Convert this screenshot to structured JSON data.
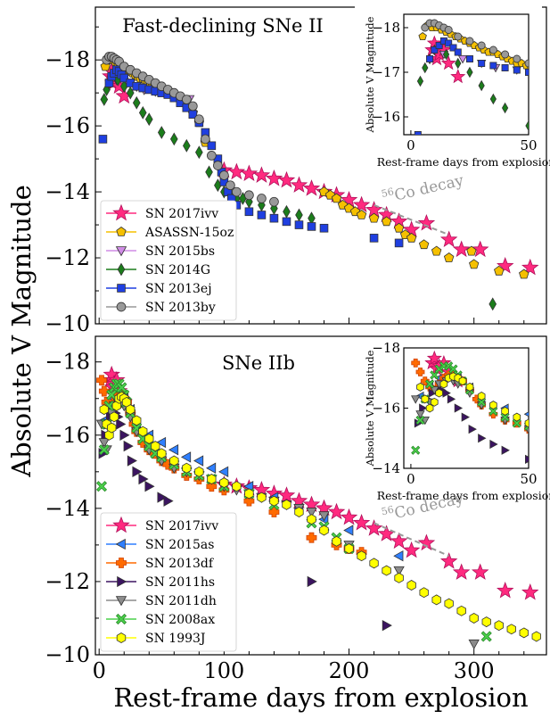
{
  "colors": {
    "SN 2017ivv": "#ff2a7f",
    "ASASSN-15oz": "#f5c000",
    "SN 2015bs": "#d08ce6",
    "SN 2014G": "#1b7d1b",
    "SN 2013ej": "#1f3fe0",
    "SN 2013by": "#999999",
    "SN 2015as": "#2f7fff",
    "SN 2013df": "#ff6a00",
    "SN 2011hs": "#3b1460",
    "SN 2011dh": "#8c8c8c",
    "SN 2008ax": "#4bd04b",
    "SN 1993J": "#ffff00"
  },
  "shared": {
    "xlabel": "Rest-frame days from explosion",
    "ylabel": "Absolute V Magnitude",
    "inset_xlabel": "Rest-frame days from explosion",
    "inset_ylabel": "Absolute V Magnitude",
    "decay_label": "Co decay",
    "decay_sup": "56"
  },
  "chart_data": [
    {
      "type": "scatter",
      "panel": "top",
      "title": "Fast-declining SNe II",
      "xlim": [
        -3,
        358
      ],
      "ylim": [
        -10,
        -19.6
      ],
      "y_inverted": true,
      "yticks": [
        -18,
        -16,
        -14,
        -12,
        -10
      ],
      "yticklabels": [
        "−18",
        "−16",
        "−14",
        "−12",
        "−10"
      ],
      "legend_position": "lower-left",
      "decay_line": {
        "x": [
          220,
          280
        ],
        "y": [
          -13.6,
          -12.7
        ]
      },
      "series": [
        {
          "name": "SN 2017ivv",
          "marker": "star",
          "x": [
            9,
            10,
            11,
            12,
            14,
            16,
            20,
            100,
            110,
            120,
            130,
            140,
            150,
            160,
            170,
            180,
            190,
            200,
            210,
            220,
            230,
            240,
            250,
            262,
            280,
            290,
            305,
            325,
            345
          ],
          "y": [
            -17.5,
            -17.65,
            -17.3,
            -17.4,
            -17.5,
            -17.2,
            -16.9,
            -14.65,
            -14.6,
            -14.55,
            -14.5,
            -14.4,
            -14.35,
            -14.2,
            -14.1,
            -14.0,
            -13.9,
            -13.75,
            -13.6,
            -13.45,
            -13.3,
            -13.1,
            -12.85,
            -13.05,
            -12.55,
            -12.25,
            -12.25,
            -11.75,
            -11.7
          ]
        },
        {
          "name": "ASASSN-15oz",
          "marker": "pentagon",
          "x": [
            5,
            7,
            9,
            11,
            13,
            15,
            17,
            19,
            21,
            23,
            25,
            27,
            29,
            31,
            33,
            35,
            37,
            39,
            41,
            43,
            45,
            47,
            49,
            51,
            55,
            60,
            65,
            70,
            75,
            80,
            85,
            180,
            185,
            190,
            195,
            200,
            205,
            210,
            220,
            230,
            240,
            245,
            250,
            260,
            270,
            280,
            298,
            300,
            320,
            340
          ],
          "y": [
            -17.8,
            -18.05,
            -18.0,
            -18.0,
            -17.95,
            -17.9,
            -17.85,
            -17.8,
            -17.75,
            -17.7,
            -17.65,
            -17.6,
            -17.55,
            -17.5,
            -17.45,
            -17.45,
            -17.4,
            -17.35,
            -17.3,
            -17.25,
            -17.2,
            -17.2,
            -17.15,
            -17.1,
            -17.0,
            -16.9,
            -16.8,
            -16.6,
            -16.4,
            -16.1,
            -15.5,
            -14.0,
            -13.9,
            -13.8,
            -13.6,
            -13.5,
            -13.4,
            -13.3,
            -13.2,
            -13.1,
            -12.9,
            -12.7,
            -12.6,
            -12.4,
            -12.2,
            -12.0,
            -12.2,
            -11.8,
            -11.6,
            -11.5
          ]
        },
        {
          "name": "SN 2015bs",
          "marker": "triangle-down",
          "x": [
            14,
            22,
            30,
            36,
            45,
            52,
            62,
            72
          ],
          "y": [
            -17.4,
            -17.3,
            -17.2,
            -17.1,
            -17.05,
            -17.0,
            -16.9,
            -16.8
          ]
        },
        {
          "name": "SN 2014G",
          "marker": "diamond",
          "x": [
            4,
            6,
            8,
            10,
            15,
            20,
            25,
            30,
            35,
            40,
            50,
            60,
            70,
            80,
            88,
            95,
            100,
            105,
            110,
            115,
            120,
            130,
            140,
            150,
            160,
            170,
            315
          ],
          "y": [
            -16.8,
            -17.1,
            -17.3,
            -17.5,
            -17.4,
            -17.2,
            -17.0,
            -16.7,
            -16.4,
            -16.2,
            -15.8,
            -15.6,
            -15.4,
            -15.2,
            -14.6,
            -14.2,
            -14.0,
            -13.9,
            -13.8,
            -13.8,
            -13.7,
            -13.6,
            -13.5,
            -13.4,
            -13.3,
            -13.2,
            -10.6
          ]
        },
        {
          "name": "SN 2013ej",
          "marker": "square",
          "x": [
            3,
            8,
            10,
            12,
            14,
            16,
            18,
            20,
            25,
            30,
            35,
            40,
            45,
            50,
            55,
            60,
            65,
            70,
            75,
            80,
            85,
            90,
            95,
            98,
            100,
            103,
            106,
            110,
            120,
            130,
            140,
            150,
            160,
            170,
            180,
            220,
            240
          ],
          "y": [
            -15.6,
            -17.3,
            -17.5,
            -17.6,
            -17.7,
            -17.65,
            -17.55,
            -17.45,
            -17.3,
            -17.2,
            -17.15,
            -17.1,
            -17.05,
            -17.0,
            -16.95,
            -16.85,
            -16.7,
            -16.55,
            -16.35,
            -16.1,
            -15.8,
            -15.4,
            -15.0,
            -14.6,
            -14.3,
            -14.0,
            -13.8,
            -13.6,
            -13.4,
            -13.3,
            -13.2,
            -13.1,
            -13.0,
            -12.95,
            -12.9,
            -12.6,
            -12.45
          ]
        },
        {
          "name": "SN 2013by",
          "marker": "circle",
          "x": [
            6,
            8,
            10,
            12,
            14,
            16,
            20,
            25,
            30,
            35,
            40,
            45,
            50,
            55,
            60,
            65,
            70,
            75,
            80,
            85,
            90,
            95,
            100,
            105,
            110,
            120,
            130,
            140
          ],
          "y": [
            -18.0,
            -18.1,
            -18.1,
            -18.05,
            -18.0,
            -17.95,
            -17.8,
            -17.7,
            -17.6,
            -17.5,
            -17.4,
            -17.3,
            -17.2,
            -17.1,
            -17.0,
            -16.9,
            -16.8,
            -16.6,
            -16.2,
            -15.6,
            -15.1,
            -14.8,
            -14.5,
            -14.2,
            -14.0,
            -13.9,
            -13.8,
            -13.7
          ]
        }
      ],
      "inset": {
        "xlim": [
          -3,
          50
        ],
        "ylim": [
          -15.6,
          -18.3
        ],
        "xticks": [
          0,
          50
        ],
        "yticks": [
          -18,
          -17,
          -16
        ],
        "yticklabels": [
          "−18",
          "−17",
          "−16"
        ],
        "series_names": [
          "SN 2017ivv",
          "ASASSN-15oz",
          "SN 2015bs",
          "SN 2014G",
          "SN 2013ej",
          "SN 2013by"
        ]
      }
    },
    {
      "type": "scatter",
      "panel": "bottom",
      "title": "SNe IIb",
      "xlim": [
        -3,
        358
      ],
      "ylim": [
        -10,
        -18.7
      ],
      "y_inverted": true,
      "xticks": [
        0,
        100,
        200,
        300
      ],
      "yticks": [
        -18,
        -16,
        -14,
        -12,
        -10
      ],
      "yticklabels": [
        "−18",
        "−16",
        "−14",
        "−12",
        "−10"
      ],
      "legend_position": "lower-left",
      "decay_line": {
        "x": [
          220,
          280
        ],
        "y": [
          -13.6,
          -12.7
        ]
      },
      "series": [
        {
          "name": "SN 2017ivv",
          "marker": "star",
          "x": [
            9,
            10,
            11,
            12,
            14,
            16,
            20,
            100,
            110,
            120,
            130,
            140,
            150,
            160,
            170,
            180,
            190,
            200,
            210,
            220,
            230,
            240,
            250,
            262,
            280,
            290,
            305,
            325,
            345
          ],
          "y": [
            -17.5,
            -17.65,
            -17.3,
            -17.4,
            -17.5,
            -17.2,
            -16.9,
            -14.65,
            -14.6,
            -14.55,
            -14.5,
            -14.4,
            -14.35,
            -14.2,
            -14.1,
            -14.0,
            -13.9,
            -13.75,
            -13.6,
            -13.45,
            -13.3,
            -13.1,
            -12.85,
            -13.05,
            -12.55,
            -12.25,
            -12.25,
            -11.75,
            -11.7
          ]
        },
        {
          "name": "SN 2015as",
          "marker": "triangle-left",
          "x": [
            4,
            8,
            12,
            16,
            20,
            25,
            30,
            40,
            50,
            60,
            70,
            80,
            90,
            100,
            120,
            140,
            160,
            180,
            200,
            240
          ],
          "y": [
            -16.4,
            -16.8,
            -17.0,
            -17.1,
            -17.0,
            -16.7,
            -16.3,
            -16.0,
            -15.8,
            -15.6,
            -15.4,
            -15.3,
            -15.1,
            -15.0,
            -14.6,
            -14.3,
            -14.0,
            -13.7,
            -13.4,
            -12.7
          ]
        },
        {
          "name": "SN 2013df",
          "marker": "plus",
          "x": [
            2,
            4,
            6,
            8,
            10,
            12,
            14,
            16,
            18,
            20,
            22,
            25,
            28,
            30,
            35,
            40,
            45,
            50,
            55,
            60,
            70,
            80,
            90,
            100,
            120,
            140,
            170,
            190,
            200,
            210
          ],
          "y": [
            -17.5,
            -17.2,
            -16.9,
            -16.7,
            -16.6,
            -16.8,
            -17.0,
            -17.1,
            -17.1,
            -17.0,
            -16.9,
            -16.6,
            -16.3,
            -16.1,
            -15.8,
            -15.6,
            -15.5,
            -15.3,
            -15.2,
            -15.1,
            -14.9,
            -14.8,
            -14.6,
            -14.5,
            -14.2,
            -13.9,
            -13.2,
            -13.0,
            -12.9,
            -12.8
          ]
        },
        {
          "name": "SN 2011hs",
          "marker": "triangle-right",
          "x": [
            3,
            5,
            7,
            9,
            11,
            13,
            15,
            17,
            20,
            23,
            26,
            30,
            35,
            40,
            50,
            55,
            170,
            230
          ],
          "y": [
            -15.5,
            -16.0,
            -16.3,
            -16.5,
            -16.6,
            -16.6,
            -16.5,
            -16.3,
            -16.0,
            -15.7,
            -15.3,
            -15.0,
            -14.8,
            -14.6,
            -14.3,
            -14.2,
            -12.0,
            -10.8
          ]
        },
        {
          "name": "SN 2011dh",
          "marker": "triangle-down",
          "x": [
            2,
            4,
            6,
            8,
            10,
            12,
            15,
            18,
            20,
            25,
            30,
            40,
            50,
            60,
            70,
            80,
            90,
            100,
            110,
            120,
            130,
            140,
            150,
            160,
            170,
            180,
            200,
            240,
            300
          ],
          "y": [
            -16.3,
            -15.8,
            -15.6,
            -16.2,
            -16.6,
            -16.8,
            -16.9,
            -16.9,
            -16.8,
            -16.5,
            -16.1,
            -15.6,
            -15.3,
            -15.1,
            -15.0,
            -14.9,
            -14.8,
            -14.6,
            -14.5,
            -14.4,
            -14.3,
            -14.2,
            -14.1,
            -14.0,
            -13.9,
            -13.8,
            -13.0,
            -12.3,
            -10.3
          ]
        },
        {
          "name": "SN 2008ax",
          "marker": "x",
          "x": [
            2,
            4,
            6,
            8,
            10,
            12,
            14,
            16,
            18,
            20,
            22,
            25,
            30,
            35,
            40,
            45,
            50,
            60,
            70,
            80,
            90,
            100,
            120,
            140,
            170,
            180,
            190,
            200,
            310
          ],
          "y": [
            -14.6,
            -15.6,
            -16.3,
            -16.8,
            -17.1,
            -17.3,
            -17.4,
            -17.4,
            -17.3,
            -17.1,
            -16.9,
            -16.6,
            -16.2,
            -15.9,
            -15.7,
            -15.5,
            -15.4,
            -15.2,
            -15.0,
            -14.9,
            -14.8,
            -14.6,
            -14.4,
            -14.1,
            -13.6,
            -13.5,
            -13.2,
            -12.9,
            -10.5
          ]
        },
        {
          "name": "SN 1993J",
          "marker": "hexagon",
          "x": [
            4,
            6,
            8,
            10,
            12,
            14,
            16,
            18,
            20,
            22,
            25,
            30,
            35,
            40,
            45,
            50,
            60,
            70,
            80,
            90,
            100,
            110,
            120,
            130,
            140,
            150,
            160,
            170,
            180,
            190,
            200,
            210,
            220,
            230,
            240,
            250,
            260,
            270,
            280,
            290,
            300,
            310,
            320,
            330,
            340,
            350
          ],
          "y": [
            -16.7,
            -16.3,
            -16.0,
            -16.2,
            -16.5,
            -16.8,
            -17.0,
            -17.05,
            -17.0,
            -16.9,
            -16.7,
            -16.4,
            -16.1,
            -15.9,
            -15.7,
            -15.5,
            -15.3,
            -15.1,
            -15.0,
            -14.8,
            -14.7,
            -14.6,
            -14.4,
            -14.3,
            -14.2,
            -14.1,
            -13.9,
            -13.7,
            -13.4,
            -13.1,
            -12.9,
            -12.7,
            -12.5,
            -12.3,
            -12.1,
            -11.9,
            -11.7,
            -11.5,
            -11.4,
            -11.2,
            -11.0,
            -10.9,
            -10.8,
            -10.7,
            -10.6,
            -10.5
          ]
        }
      ],
      "inset": {
        "xlim": [
          -3,
          50
        ],
        "ylim": [
          -14,
          -18
        ],
        "xticks": [
          0,
          50
        ],
        "yticks": [
          -18,
          -16,
          -14
        ],
        "yticklabels": [
          "−18",
          "−16",
          "−14"
        ],
        "series_names": [
          "SN 2017ivv",
          "SN 2015as",
          "SN 2013df",
          "SN 2011hs",
          "SN 2011dh",
          "SN 2008ax",
          "SN 1993J"
        ]
      }
    }
  ]
}
